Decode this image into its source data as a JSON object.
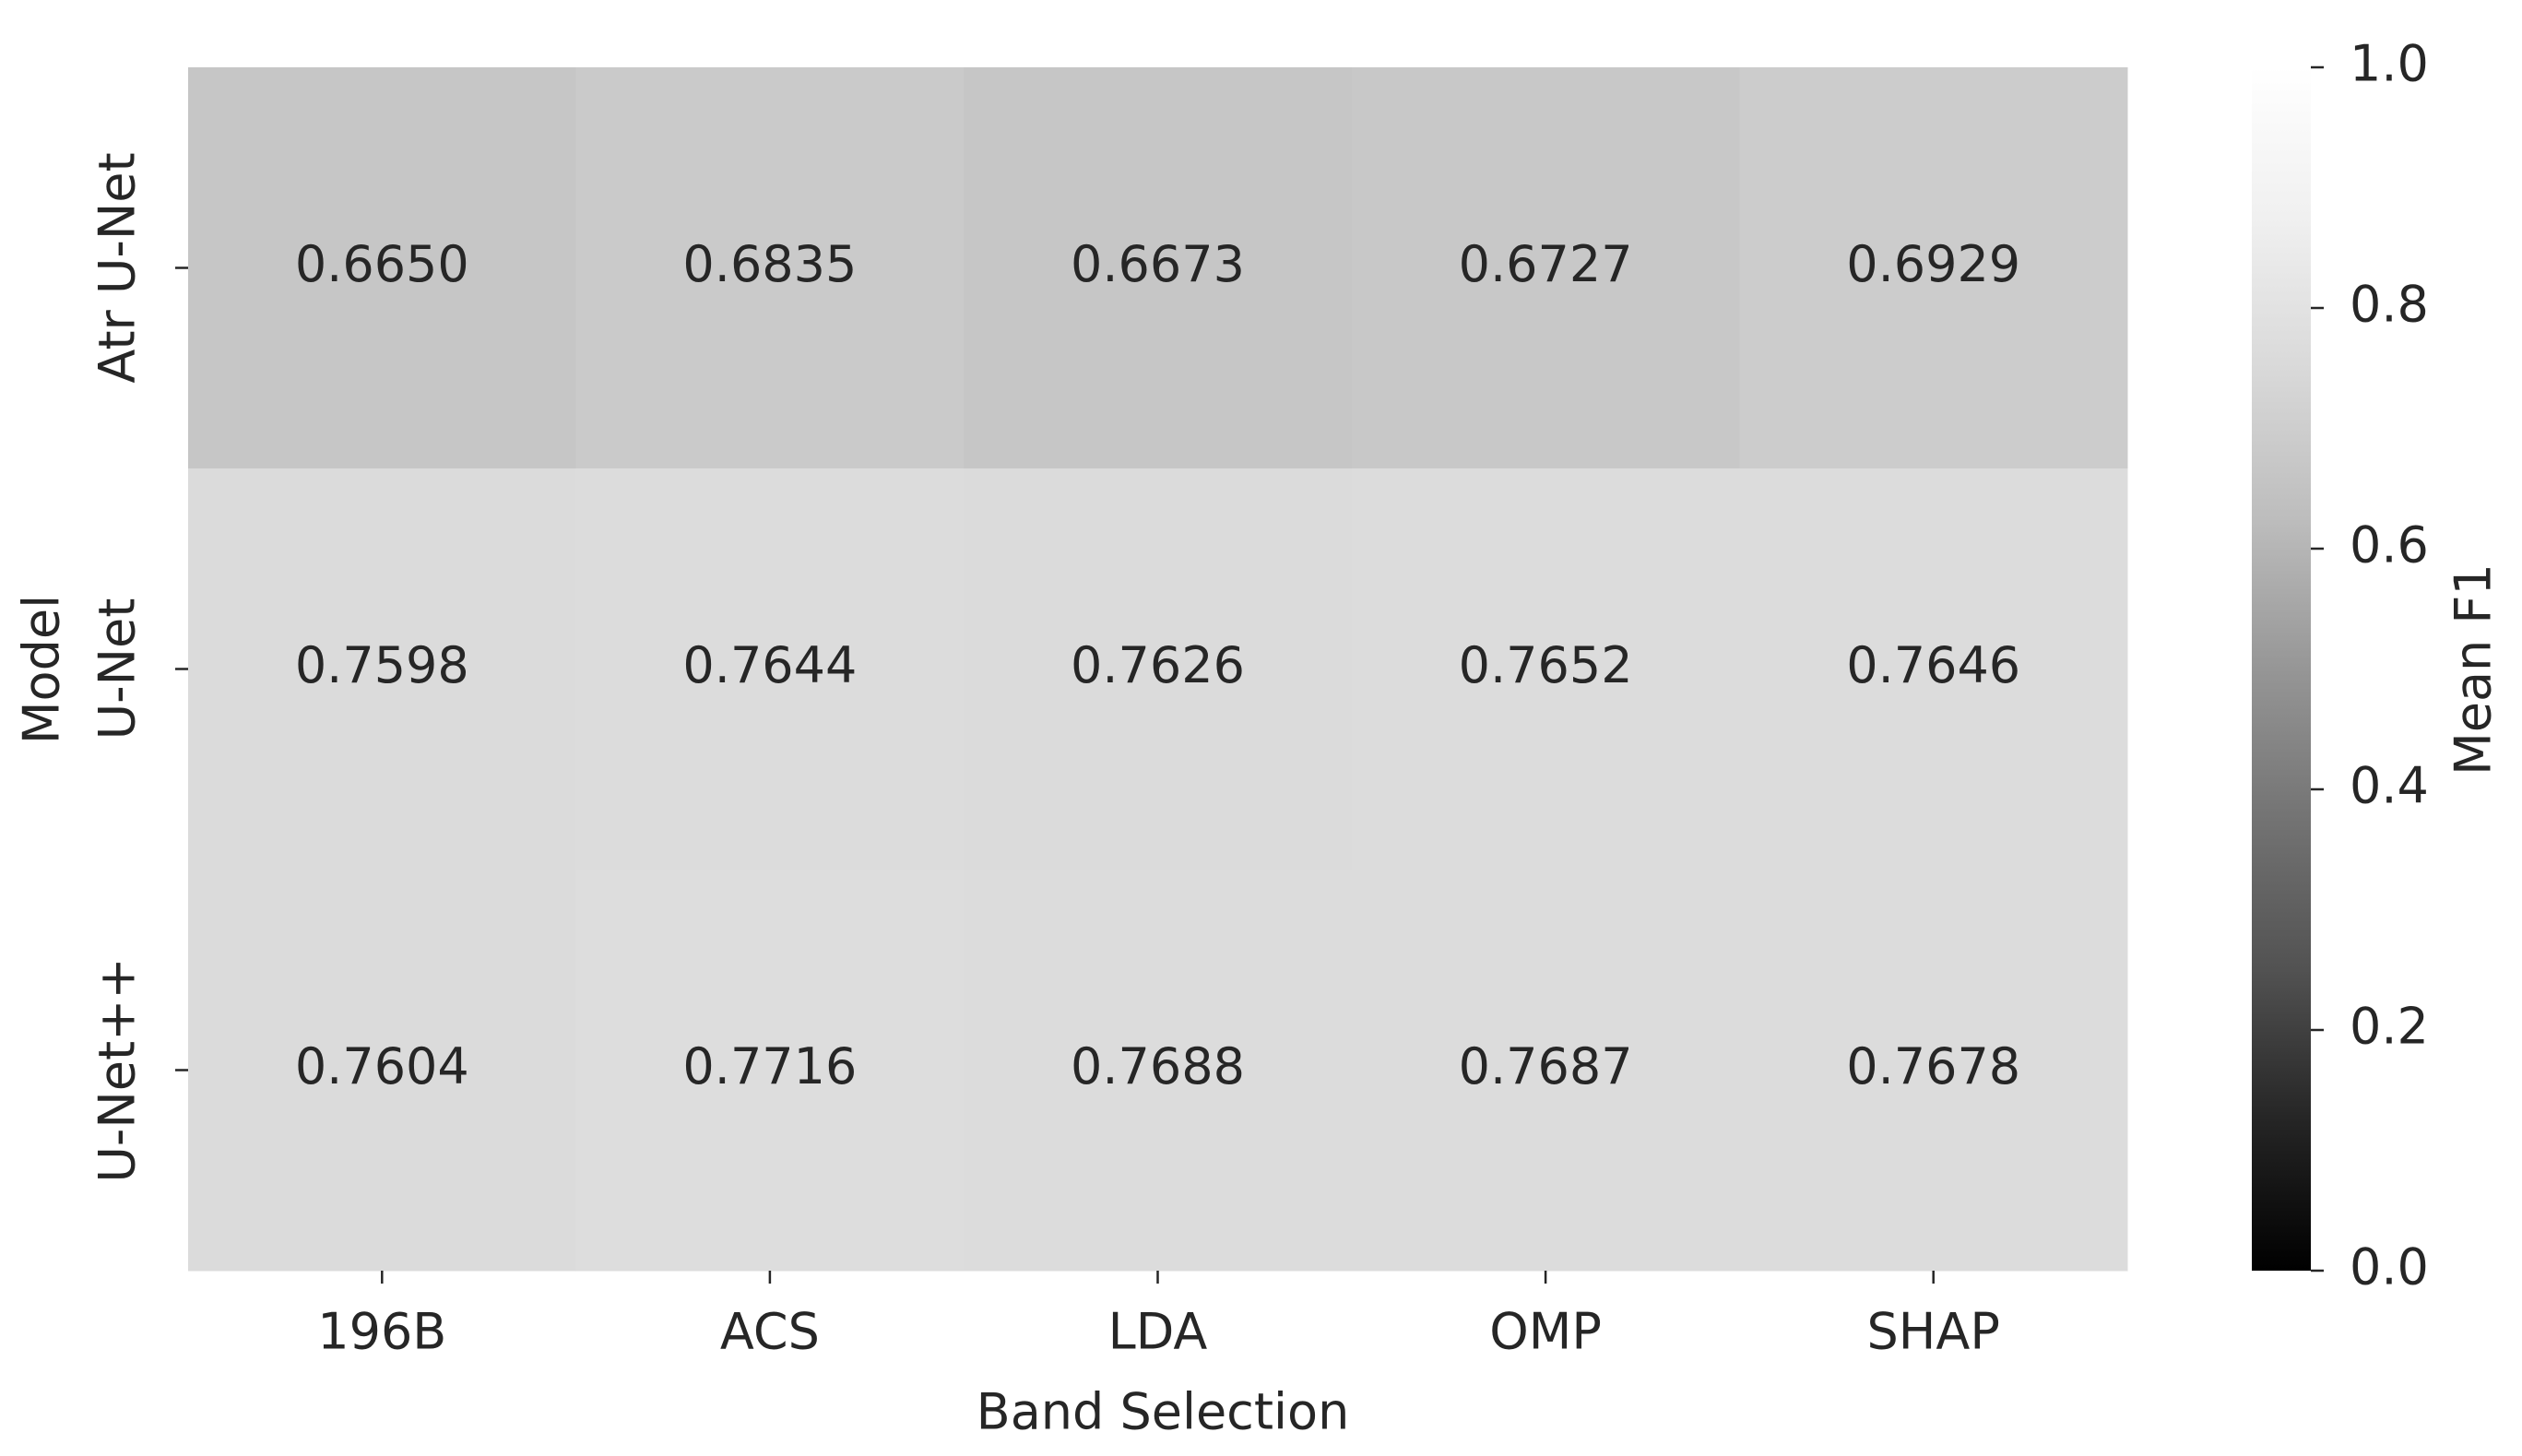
{
  "chart_data": {
    "type": "heatmap",
    "x_label": "Band Selection",
    "y_label": "Model",
    "categories": [
      "196B",
      "ACS",
      "LDA",
      "OMP",
      "SHAP"
    ],
    "rows": [
      "Atr U-Net",
      "U-Net",
      "U-Net++"
    ],
    "values": [
      [
        0.665,
        0.6835,
        0.6673,
        0.6727,
        0.6929
      ],
      [
        0.7598,
        0.7644,
        0.7626,
        0.7652,
        0.7646
      ],
      [
        0.7604,
        0.7716,
        0.7688,
        0.7687,
        0.7678
      ]
    ],
    "value_labels": [
      [
        "0.6650",
        "0.6835",
        "0.6673",
        "0.6727",
        "0.6929"
      ],
      [
        "0.7598",
        "0.7644",
        "0.7626",
        "0.7652",
        "0.7646"
      ],
      [
        "0.7604",
        "0.7716",
        "0.7688",
        "0.7687",
        "0.7678"
      ]
    ],
    "cmap": "Greys_r",
    "colorbar_label": "Mean F1",
    "clim": [
      0,
      1
    ],
    "cticks": [
      {
        "value": 0,
        "label": "0.0"
      },
      0.2,
      0.4,
      0.6,
      0.8,
      {
        "value": 1,
        "label": "1.0"
      }
    ]
  }
}
